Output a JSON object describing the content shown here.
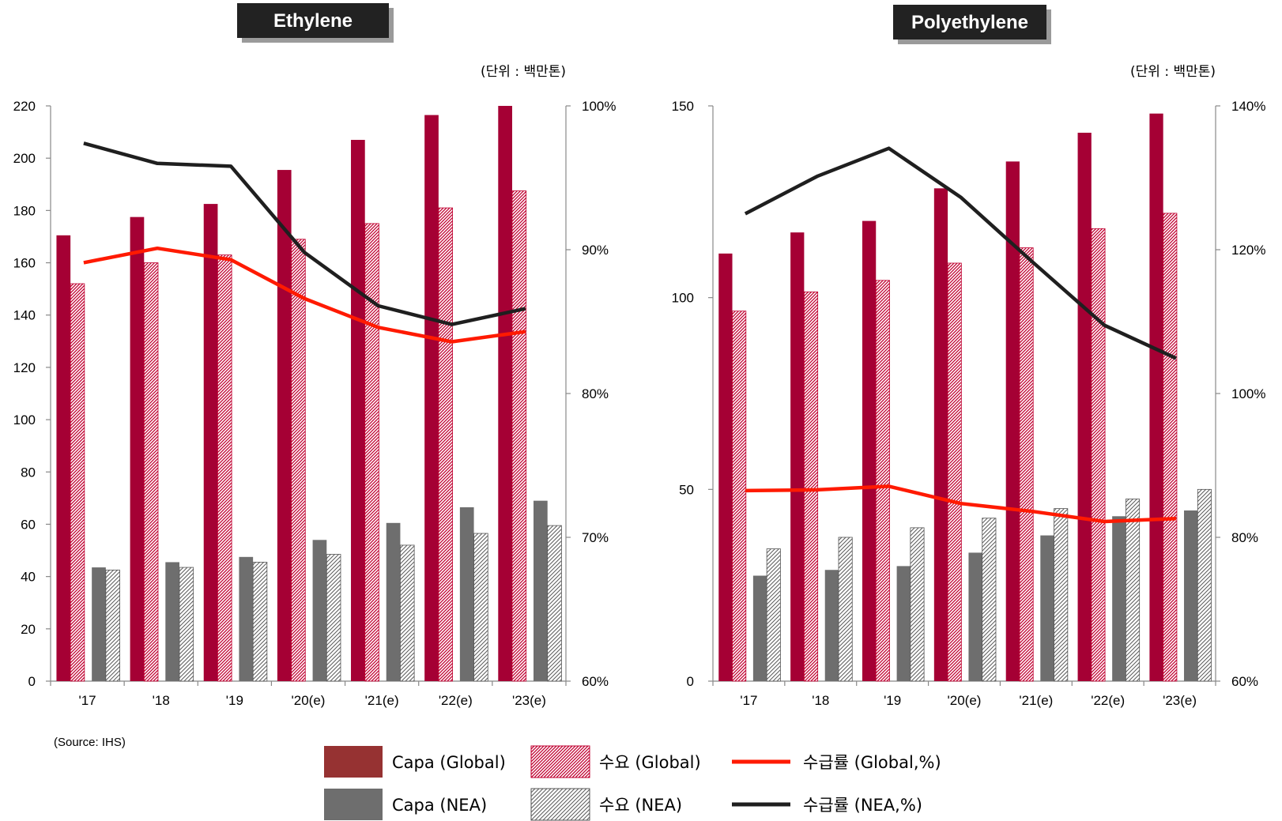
{
  "colors": {
    "capa_global": "#a50034",
    "demand_global_stripe": "#c00030",
    "capa_nea": "#6e6e6e",
    "demand_nea_stripe": "#5a5a5a",
    "line_global": "#ff1a00",
    "line_nea": "#1f1f1f",
    "legend_capa_global": "#963232",
    "legend_capa_nea": "#6e6e6e"
  },
  "unit_label": "(단위 : 백만톤)",
  "source": "(Source: IHS)",
  "legend": [
    {
      "key": "capa_global",
      "label": "Capa (Global)",
      "kind": "solid"
    },
    {
      "key": "demand_global",
      "label": "수요 (Global)",
      "kind": "hatch-red"
    },
    {
      "key": "ratio_global",
      "label": "수급률 (Global,%)",
      "kind": "line-red"
    },
    {
      "key": "capa_nea",
      "label": "Capa (NEA)",
      "kind": "solid-gray"
    },
    {
      "key": "demand_nea",
      "label": "수요 (NEA)",
      "kind": "hatch-gray"
    },
    {
      "key": "ratio_nea",
      "label": "수급률 (NEA,%)",
      "kind": "line-black"
    }
  ],
  "chart_data": [
    {
      "type": "bar",
      "title": "Ethylene",
      "categories": [
        "'17",
        "'18",
        "'19",
        "'20(e)",
        "'21(e)",
        "'22(e)",
        "'23(e)"
      ],
      "ylim": [
        0,
        220
      ],
      "yticks": [
        0,
        20,
        40,
        60,
        80,
        100,
        120,
        140,
        160,
        180,
        200,
        220
      ],
      "y2lim": [
        60,
        100
      ],
      "y2ticks": [
        "60%",
        "70%",
        "80%",
        "90%",
        "100%"
      ],
      "y2tick_values": [
        60,
        70,
        80,
        90,
        100
      ],
      "series": [
        {
          "name": "Capa (Global)",
          "axis": "left",
          "values": [
            170.5,
            177.5,
            182.5,
            195.5,
            207,
            216.5,
            220
          ]
        },
        {
          "name": "수요 (Global)",
          "axis": "left",
          "values": [
            152,
            160,
            163,
            169,
            175,
            181,
            187.5
          ]
        },
        {
          "name": "Capa (NEA)",
          "axis": "left",
          "values": [
            43.5,
            45.5,
            47.5,
            54,
            60.5,
            66.5,
            69
          ]
        },
        {
          "name": "수요 (NEA)",
          "axis": "left",
          "values": [
            42.5,
            43.5,
            45.5,
            48.5,
            52,
            56.5,
            59.5
          ]
        },
        {
          "name": "수급률 (Global,%)",
          "axis": "right",
          "type": "line",
          "values": [
            89.1,
            90.1,
            89.3,
            86.6,
            84.6,
            83.6,
            84.3
          ]
        },
        {
          "name": "수급률 (NEA,%)",
          "axis": "right",
          "type": "line",
          "values": [
            97.4,
            96.0,
            95.8,
            89.8,
            86.1,
            84.8,
            85.9
          ]
        }
      ]
    },
    {
      "type": "bar",
      "title": "Polyethylene",
      "categories": [
        "'17",
        "'18",
        "'19",
        "'20(e)",
        "'21(e)",
        "'22(e)",
        "'23(e)"
      ],
      "ylim": [
        0,
        150
      ],
      "yticks": [
        0,
        50,
        100,
        150
      ],
      "y2lim": [
        60,
        140
      ],
      "y2ticks": [
        "60%",
        "80%",
        "100%",
        "120%",
        "140%"
      ],
      "y2tick_values": [
        60,
        80,
        100,
        120,
        140
      ],
      "series": [
        {
          "name": "Capa (Global)",
          "axis": "left",
          "values": [
            111.5,
            117,
            120,
            128.5,
            135.5,
            143,
            148
          ]
        },
        {
          "name": "수요 (Global)",
          "axis": "left",
          "values": [
            96.5,
            101.5,
            104.5,
            109,
            113,
            118,
            122
          ]
        },
        {
          "name": "Capa (NEA)",
          "axis": "left",
          "values": [
            27.5,
            29,
            30,
            33.5,
            38,
            43,
            44.5
          ]
        },
        {
          "name": "수요 (NEA)",
          "axis": "left",
          "values": [
            34.5,
            37.5,
            40,
            42.5,
            45,
            47.5,
            50
          ]
        },
        {
          "name": "수급률 (Global,%)",
          "axis": "right",
          "type": "line",
          "values": [
            86.5,
            86.6,
            87.1,
            84.7,
            83.6,
            82.2,
            82.6
          ]
        },
        {
          "name": "수급률 (NEA,%)",
          "axis": "right",
          "type": "line",
          "values": [
            125.0,
            130.2,
            134.1,
            127.3,
            118.3,
            109.5,
            104.9
          ]
        }
      ]
    }
  ]
}
